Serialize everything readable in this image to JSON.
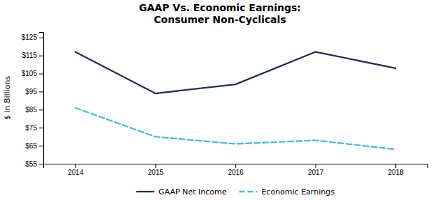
{
  "chart_data": {
    "type": "line",
    "title": "GAAP Vs. Economic Earnings:",
    "subtitle": "Consumer Non-Cyclicals",
    "y_label": "$ in Billions",
    "x": [
      2014,
      2015,
      2016,
      2017,
      2018
    ],
    "series": [
      {
        "name": "GAAP Net Income",
        "color": "#1b2f5e",
        "line_style": "solid",
        "values": [
          117,
          94,
          99,
          117,
          108
        ]
      },
      {
        "name": "Economic Earnings",
        "color": "#40bfe8",
        "line_style": "dashed",
        "values": [
          86,
          70,
          66,
          68,
          63
        ]
      }
    ],
    "xlim": [
      2013.6,
      2018.4
    ],
    "xticks": [
      2014,
      2015,
      2016,
      2017,
      2018
    ],
    "ylim": [
      55,
      128
    ],
    "yticks": [
      {
        "value": 55,
        "label": "$55"
      },
      {
        "value": 65,
        "label": "$65"
      },
      {
        "value": 75,
        "label": "$75"
      },
      {
        "value": 85,
        "label": "$85"
      },
      {
        "value": 95,
        "label": "$95"
      },
      {
        "value": 105,
        "label": "$105"
      },
      {
        "value": 115,
        "label": "$115"
      },
      {
        "value": 125,
        "label": "$125"
      }
    ],
    "grid": false,
    "legend": "bottom"
  }
}
